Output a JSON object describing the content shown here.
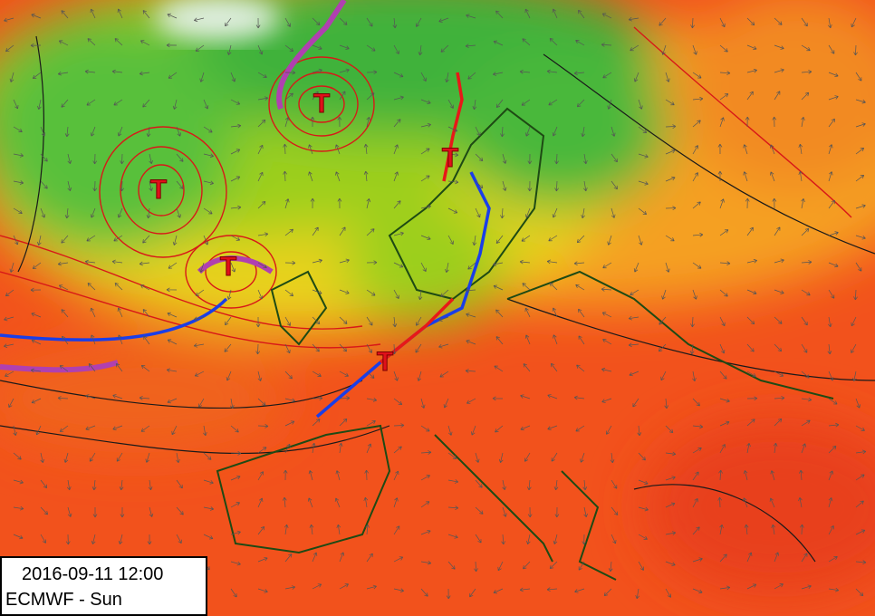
{
  "timestamp": "2016-09-11 12:00",
  "model_label": "ECMWF - Sun",
  "lows": [
    {
      "label": "T"
    },
    {
      "label": "T"
    },
    {
      "label": "T"
    },
    {
      "label": "T"
    },
    {
      "label": "T"
    }
  ]
}
